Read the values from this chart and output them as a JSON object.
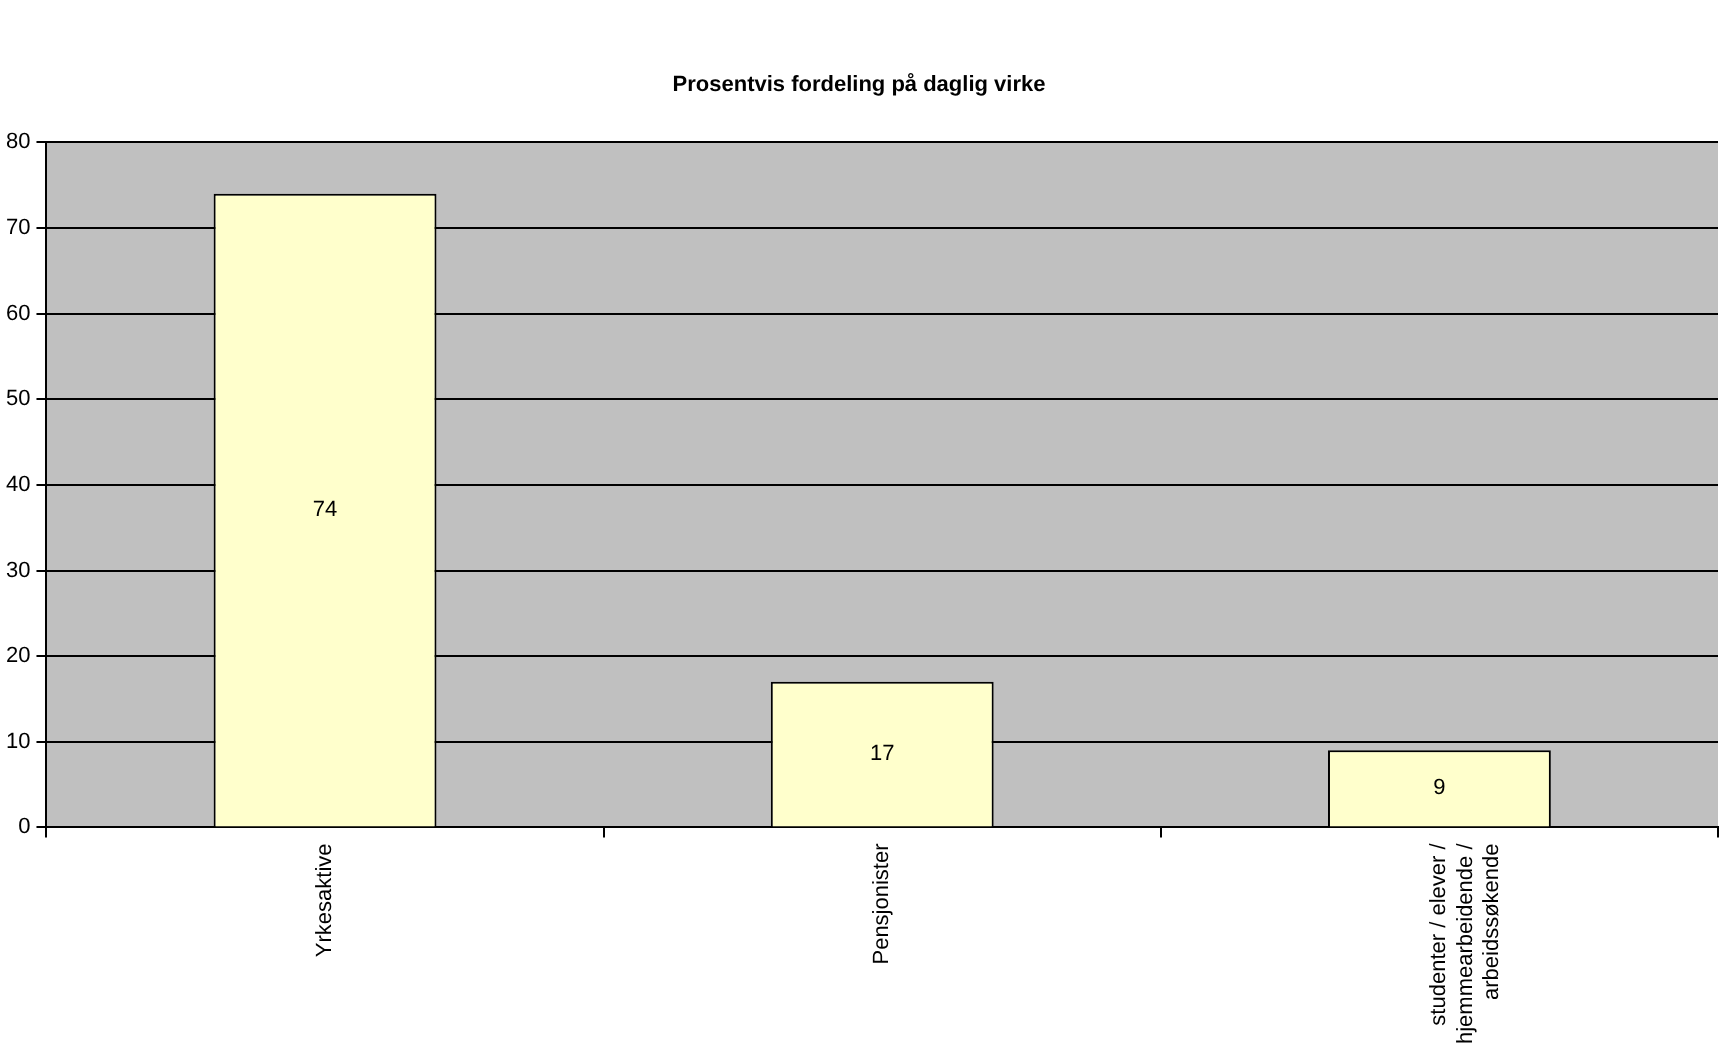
{
  "chart_data": {
    "type": "bar",
    "title": "Prosentvis fordeling på daglig virke",
    "categories": [
      "Yrkesaktive",
      "Pensjonister",
      "studenter / elever / hjemmearbeidende / arbeidssøkende"
    ],
    "values": [
      74,
      17,
      9
    ],
    "color": "#ffffcc",
    "ylim": [
      0,
      80
    ],
    "yticks": [
      0,
      10,
      20,
      30,
      40,
      50,
      60,
      70,
      80
    ],
    "grid": "y",
    "data_labels": true,
    "legend": false
  }
}
